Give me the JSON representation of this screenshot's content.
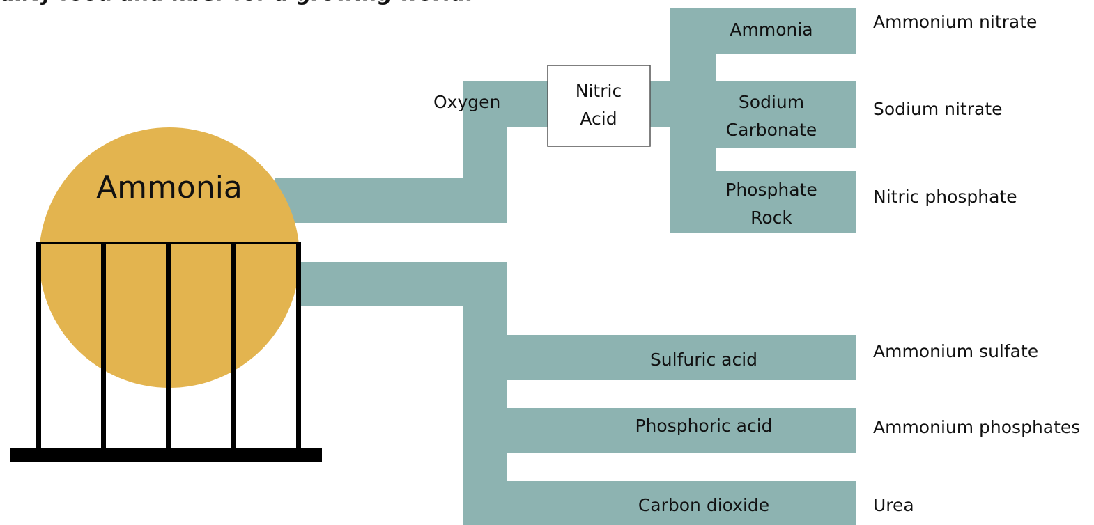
{
  "header": {
    "title": "ality food and fiber for a growing world."
  },
  "source": {
    "label": "Ammonia"
  },
  "upper": {
    "input": "Oxygen",
    "intermediate": "Nitric Acid",
    "branches": [
      {
        "reactant": "Ammonia",
        "product": "Ammonium nitrate"
      },
      {
        "reactant": "Sodium Carbonate",
        "product": "Sodium nitrate"
      },
      {
        "reactant": "Phosphate Rock",
        "product": "Nitric phosphate"
      }
    ]
  },
  "lower": {
    "branches": [
      {
        "reactant": "Sulfuric acid",
        "product": "Ammonium sulfate"
      },
      {
        "reactant": "Phosphoric acid",
        "product": "Ammonium phosphates"
      },
      {
        "reactant": "Carbon dioxide",
        "product": "Urea"
      }
    ]
  }
}
